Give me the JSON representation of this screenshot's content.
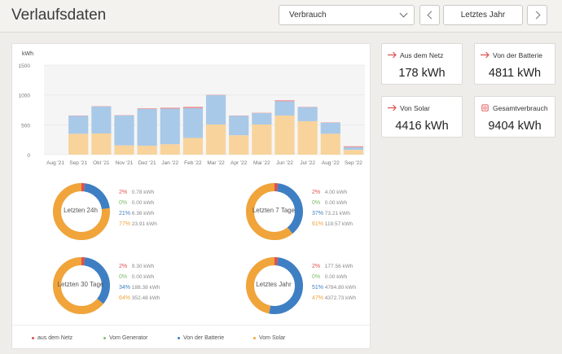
{
  "header": {
    "title": "Verlaufsdaten",
    "select_value": "Verbrauch",
    "period_label": "Letztes Jahr"
  },
  "colors": {
    "netz": "#e05050",
    "generator": "#7bbf6a",
    "batterie": "#3e7fc4",
    "solar": "#f0a43a"
  },
  "chart_data": {
    "type": "bar",
    "ylabel": "kWh",
    "ylim": [
      0,
      1500
    ],
    "yticks": [
      "0",
      "500",
      "1000",
      "1500"
    ],
    "categories": [
      "Aug '21",
      "Sep '21",
      "Okt '21",
      "Nov '21",
      "Dez '21",
      "Jan '22",
      "Feb '22",
      "Mar '22",
      "Apr '22",
      "Mai '22",
      "Jun '22",
      "Jul '22",
      "Aug '22",
      "Sep '22"
    ],
    "series": [
      {
        "name": "Vom Solar",
        "color": "#f8d39b",
        "values": [
          0,
          350,
          355,
          155,
          150,
          175,
          280,
          505,
          325,
          505,
          655,
          560,
          350,
          80
        ]
      },
      {
        "name": "Von der Batterie",
        "color": "#a9c9e8",
        "values": [
          0,
          300,
          450,
          500,
          615,
          595,
          500,
          490,
          325,
          190,
          240,
          235,
          185,
          45
        ]
      },
      {
        "name": "aus dem Netz",
        "color": "#e88888",
        "values": [
          0,
          5,
          5,
          5,
          10,
          15,
          20,
          5,
          5,
          5,
          15,
          5,
          5,
          15
        ]
      }
    ]
  },
  "donuts": [
    {
      "label": "Letzten 24h",
      "fractions": [
        0.02,
        0.0,
        0.21,
        0.77
      ],
      "rows": [
        {
          "pct": "2%",
          "val": "0.78 kWh"
        },
        {
          "pct": "0%",
          "val": "0.00 kWh"
        },
        {
          "pct": "21%",
          "val": "6.36 kWh"
        },
        {
          "pct": "77%",
          "val": "23.91 kWh"
        }
      ]
    },
    {
      "label": "Letzten 7 Tage",
      "fractions": [
        0.02,
        0.0,
        0.37,
        0.61
      ],
      "rows": [
        {
          "pct": "2%",
          "val": "4.00 kWh"
        },
        {
          "pct": "0%",
          "val": "0.00 kWh"
        },
        {
          "pct": "37%",
          "val": "73.21 kWh"
        },
        {
          "pct": "61%",
          "val": "119.57 kWh"
        }
      ]
    },
    {
      "label": "Letzten 30 Tage",
      "fractions": [
        0.02,
        0.0,
        0.34,
        0.64
      ],
      "rows": [
        {
          "pct": "2%",
          "val": "9.30 kWh"
        },
        {
          "pct": "0%",
          "val": "0.00 kWh"
        },
        {
          "pct": "34%",
          "val": "188.38 kWh"
        },
        {
          "pct": "64%",
          "val": "352.48 kWh"
        }
      ]
    },
    {
      "label": "Letztes Jahr",
      "fractions": [
        0.02,
        0.0,
        0.51,
        0.47
      ],
      "rows": [
        {
          "pct": "2%",
          "val": "177.56 kWh"
        },
        {
          "pct": "0%",
          "val": "0.00 kWh"
        },
        {
          "pct": "51%",
          "val": "4784.80 kWh"
        },
        {
          "pct": "47%",
          "val": "4372.73 kWh"
        }
      ]
    }
  ],
  "legend": [
    "aus dem Netz",
    "Vom Generator",
    "Von der Batterie",
    "Vom Solar"
  ],
  "tiles": [
    {
      "label": "Aus dem Netz",
      "value": "178 kWh"
    },
    {
      "label": "Von der Batterie",
      "value": "4811 kWh"
    },
    {
      "label": "Von Solar",
      "value": "4416 kWh"
    },
    {
      "label": "Gesamtverbrauch",
      "value": "9404 kWh"
    }
  ]
}
